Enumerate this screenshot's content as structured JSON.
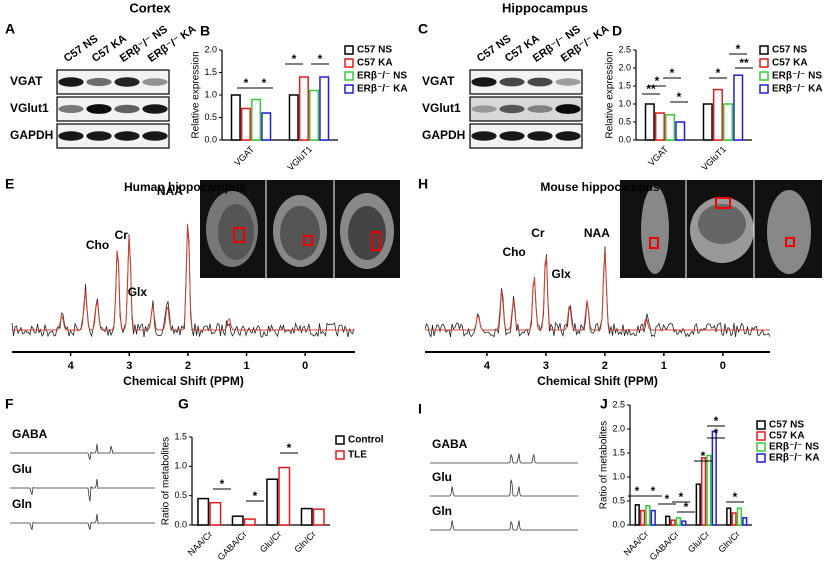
{
  "panel_labels": [
    "A",
    "B",
    "C",
    "D",
    "E",
    "H",
    "F",
    "G",
    "I",
    "J"
  ],
  "titles": {
    "cortex": "Cortex",
    "hippocampus": "Hippocampus"
  },
  "blots": [
    {
      "lanes": [
        "C57 NS",
        "C57 KA",
        "ERβ⁻/⁻ NS",
        "ERβ⁻/⁻ KA"
      ],
      "rows": [
        "VGAT",
        "VGlut1",
        "GAPDH"
      ]
    },
    {
      "lanes": [
        "C57 NS",
        "C57 KA",
        "ERβ⁻/⁻ NS",
        "ERβ⁻/⁻ KA"
      ],
      "rows": [
        "VGAT",
        "VGlut1",
        "GAPDH"
      ]
    }
  ],
  "traces": [
    {
      "labels": [
        "GABA",
        "Glu",
        "Gln"
      ]
    },
    {
      "labels": [
        "GABA",
        "Glu",
        "Gln"
      ]
    }
  ],
  "chart_data": [
    {
      "type": "bar",
      "ylabel": "Relative expression",
      "categories": [
        "VGAT",
        "VGluT1"
      ],
      "series": [
        {
          "name": "C57 NS",
          "color": "#000000",
          "values": [
            1.0,
            1.0
          ]
        },
        {
          "name": "C57 KA",
          "color": "#e41a1c",
          "values": [
            0.7,
            1.4
          ]
        },
        {
          "name": "ERβ⁻/⁻ NS",
          "color": "#33cc33",
          "values": [
            0.9,
            1.1
          ]
        },
        {
          "name": "ERβ⁻/⁻ KA",
          "color": "#1f1fd6",
          "values": [
            0.6,
            1.4
          ]
        }
      ],
      "ylim": [
        0,
        2.0
      ],
      "yticks": [
        {
          "value": 0,
          "label": "0.0"
        },
        0.5,
        {
          "value": 1,
          "label": "1.0"
        },
        1.5,
        {
          "value": 2,
          "label": "2.0"
        }
      ],
      "significance": [
        "*",
        "*",
        "*",
        "*"
      ]
    },
    {
      "type": "bar",
      "ylabel": "Relative expression",
      "categories": [
        "VGAT",
        "VGluT1"
      ],
      "series": [
        {
          "name": "C57 NS",
          "color": "#000000",
          "values": [
            1.0,
            1.0
          ]
        },
        {
          "name": "C57 KA",
          "color": "#e41a1c",
          "values": [
            0.75,
            1.4
          ]
        },
        {
          "name": "ERβ⁻/⁻ NS",
          "color": "#33cc33",
          "values": [
            0.7,
            1.0
          ]
        },
        {
          "name": "ERβ⁻/⁻ KA",
          "color": "#1f1fd6",
          "values": [
            0.5,
            1.8
          ]
        }
      ],
      "ylim": [
        0,
        2.5
      ],
      "yticks": [
        {
          "value": 0,
          "label": "0.0"
        },
        0.5,
        {
          "value": 1,
          "label": "1.0"
        },
        1.5,
        {
          "value": 2,
          "label": "2.0"
        },
        2.5
      ],
      "significance": [
        "**",
        "*",
        "*",
        "*",
        "*",
        "*",
        "**"
      ]
    },
    {
      "type": "spectrum",
      "title": "Human hippocampus",
      "xlabel": "Chemical Shift (PPM)",
      "xlim": [
        5.0,
        -0.85
      ],
      "xticks": [
        4,
        3,
        2,
        1,
        0
      ],
      "annotations": [
        {
          "label": "Cho",
          "x": 3.2
        },
        {
          "label": "Cr",
          "x": 3.0
        },
        {
          "label": "Glx",
          "x": 2.35
        },
        {
          "label": "NAA",
          "x": 2.0
        }
      ]
    },
    {
      "type": "spectrum",
      "title": "Mouse hippocampus",
      "xlabel": "Chemical Shift (PPM)",
      "xlim": [
        5.05,
        -0.8
      ],
      "xticks": [
        4,
        3,
        2,
        1,
        0
      ],
      "annotations": [
        {
          "label": "Cho",
          "x": 3.2
        },
        {
          "label": "Cr",
          "x": 3.0
        },
        {
          "label": "Glx",
          "x": 2.3
        },
        {
          "label": "NAA",
          "x": 2.0
        }
      ]
    },
    {
      "type": "bar",
      "ylabel": "Ratio of metabolites",
      "categories": [
        "NAA/Cr",
        "GABA/Cr",
        "Glu/Cr",
        "Gln/Cr"
      ],
      "series": [
        {
          "name": "Control",
          "color": "#000000",
          "values": [
            0.45,
            0.15,
            0.78,
            0.28
          ]
        },
        {
          "name": "TLE",
          "color": "#e41a1c",
          "values": [
            0.38,
            0.1,
            0.98,
            0.27
          ]
        }
      ],
      "ylim": [
        0,
        1.5
      ],
      "yticks": [
        {
          "value": 0,
          "label": "0.0"
        },
        0.5,
        {
          "value": 1,
          "label": "1.0"
        },
        1.5
      ],
      "significance": [
        "*",
        "*",
        "*"
      ]
    },
    {
      "type": "bar",
      "ylabel": "Ratio of metabolites",
      "categories": [
        "NAA/Cr",
        "GABA/Cr",
        "Glu/Cr",
        "Gln/Cr"
      ],
      "series": [
        {
          "name": "C57 NS",
          "color": "#000000",
          "values": [
            0.42,
            0.18,
            0.85,
            0.35
          ]
        },
        {
          "name": "C57 KA",
          "color": "#e41a1c",
          "values": [
            0.3,
            0.1,
            1.4,
            0.25
          ]
        },
        {
          "name": "ERβ⁻/⁻ NS",
          "color": "#33cc33",
          "values": [
            0.4,
            0.15,
            1.45,
            0.35
          ]
        },
        {
          "name": "ERβ⁻/⁻ KA",
          "color": "#1f1fd6",
          "values": [
            0.3,
            0.08,
            1.95,
            0.15
          ]
        }
      ],
      "ylim": [
        0,
        2.5
      ],
      "yticks": [
        {
          "value": 0,
          "label": "0.0"
        },
        0.5,
        {
          "value": 1,
          "label": "1.0"
        },
        1.5,
        {
          "value": 2,
          "label": "2.0"
        },
        2.5
      ],
      "significance": [
        "*",
        "*",
        "*",
        "*",
        "*",
        "*",
        "*",
        "*",
        "*"
      ]
    }
  ]
}
